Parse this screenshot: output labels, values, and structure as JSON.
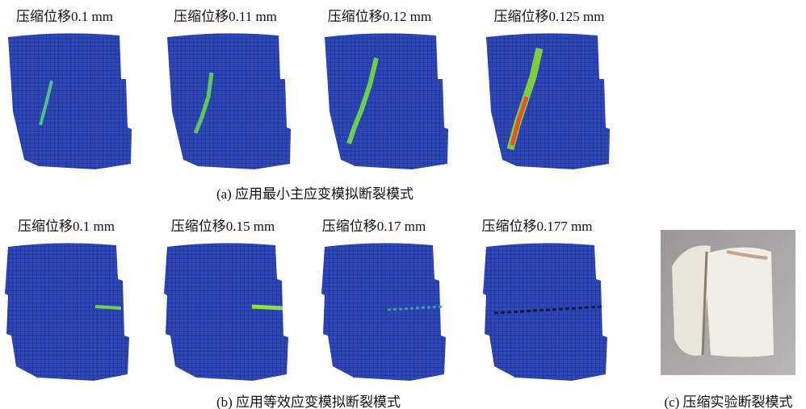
{
  "figure": {
    "row_a": {
      "labels": [
        "压缩位移0.1 mm",
        "压缩位移0.11 mm",
        "压缩位移0.12 mm",
        "压缩位移0.125 mm"
      ],
      "caption": "(a) 应用最小主应变模拟断裂模式"
    },
    "row_b": {
      "labels": [
        "压缩位移0.1 mm",
        "压缩位移0.15 mm",
        "压缩位移0.17 mm",
        "压缩位移0.177 mm"
      ],
      "caption": "(b) 应用等效应变模拟断裂模式"
    },
    "photo": {
      "caption": "(c) 压缩实验断裂模式"
    }
  }
}
